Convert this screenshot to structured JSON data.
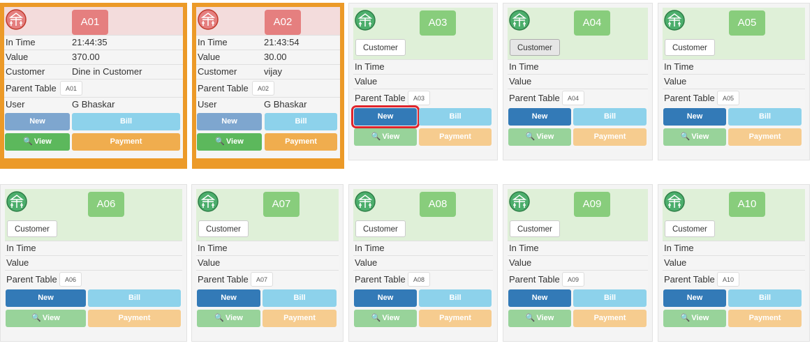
{
  "labels": {
    "in_time": "In Time",
    "value": "Value",
    "customer": "Customer",
    "parent_table": "Parent Table",
    "user": "User",
    "new": "New",
    "bill": "Bill",
    "view": "View",
    "payment": "Payment",
    "customer_button": "Customer"
  },
  "colors": {
    "occupied_frame": "#ec9a28",
    "occupied_badge": "#e57f7f",
    "free_badge": "#88cd7c",
    "new_button": "#337ab7",
    "bill_button": "#8dd2eb",
    "view_button": "#5cb85c",
    "payment_button": "#f0ad4e",
    "highlight": "#e0242c"
  },
  "tables": [
    {
      "id": "A01",
      "status": "occupied",
      "in_time": "21:44:35",
      "value": "370.00",
      "customer": "Dine in Customer",
      "parent": "A01",
      "user": "G Bhaskar"
    },
    {
      "id": "A02",
      "status": "occupied",
      "in_time": "21:43:54",
      "value": "30.00",
      "customer": "vijay",
      "parent": "A02",
      "user": "G Bhaskar"
    },
    {
      "id": "A03",
      "status": "free",
      "parent": "A03"
    },
    {
      "id": "A04",
      "status": "free",
      "parent": "A04"
    },
    {
      "id": "A05",
      "status": "free",
      "parent": "A05"
    },
    {
      "id": "A06",
      "status": "free",
      "parent": "A06"
    },
    {
      "id": "A07",
      "status": "free",
      "parent": "A07"
    },
    {
      "id": "A08",
      "status": "free",
      "parent": "A08"
    },
    {
      "id": "A09",
      "status": "free",
      "parent": "A09"
    },
    {
      "id": "A10",
      "status": "free",
      "parent": "A10"
    }
  ]
}
